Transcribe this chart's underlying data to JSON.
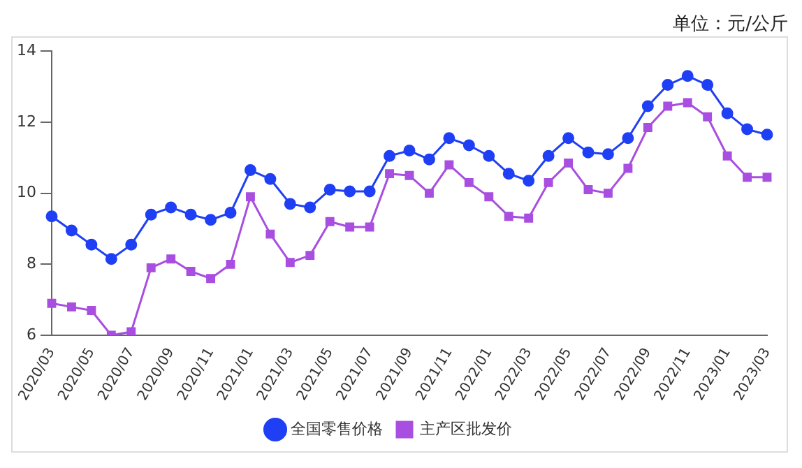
{
  "chart_data": {
    "type": "line",
    "annotations": [
      "单位：元/公斤"
    ],
    "categories": [
      "2020/03",
      null,
      "2020/05",
      null,
      "2020/07",
      null,
      "2020/09",
      null,
      "2020/11",
      null,
      "2021/01",
      null,
      "2021/03",
      null,
      "2021/05",
      null,
      "2021/07",
      null,
      "2021/09",
      null,
      "2021/11",
      null,
      "2022/01",
      null,
      "2022/03",
      null,
      "2022/05",
      null,
      "2022/07",
      null,
      "2022/09",
      null,
      "2022/11",
      null,
      "2023/01",
      null,
      "2023/03"
    ],
    "series": [
      {
        "name": "全国零售价格",
        "color": "#1f3ff5",
        "marker": "circle",
        "values": [
          9.35,
          8.95,
          8.55,
          8.15,
          8.55,
          9.4,
          9.6,
          9.4,
          9.25,
          9.45,
          10.65,
          10.4,
          9.7,
          9.6,
          10.1,
          10.05,
          10.05,
          11.05,
          11.2,
          10.95,
          11.55,
          11.35,
          11.05,
          10.55,
          10.35,
          11.05,
          11.55,
          11.15,
          11.1,
          11.55,
          12.45,
          13.05,
          13.3,
          13.05,
          12.25,
          11.8,
          11.65
        ]
      },
      {
        "name": "主产区批发价",
        "color": "#a84ee0",
        "marker": "square",
        "values": [
          6.9,
          6.8,
          6.7,
          6.0,
          6.1,
          7.9,
          8.15,
          7.8,
          7.6,
          8.0,
          9.9,
          8.85,
          8.05,
          8.25,
          9.2,
          9.05,
          9.05,
          10.55,
          10.5,
          10.0,
          10.8,
          10.3,
          9.9,
          9.35,
          9.3,
          10.3,
          10.85,
          10.1,
          10.0,
          10.7,
          11.85,
          12.45,
          12.55,
          12.15,
          11.05,
          10.45,
          10.45
        ]
      }
    ],
    "ylim": [
      6,
      14
    ],
    "yticks": [
      6,
      8,
      10,
      12,
      14
    ],
    "grid": false,
    "legend": "bottom"
  }
}
